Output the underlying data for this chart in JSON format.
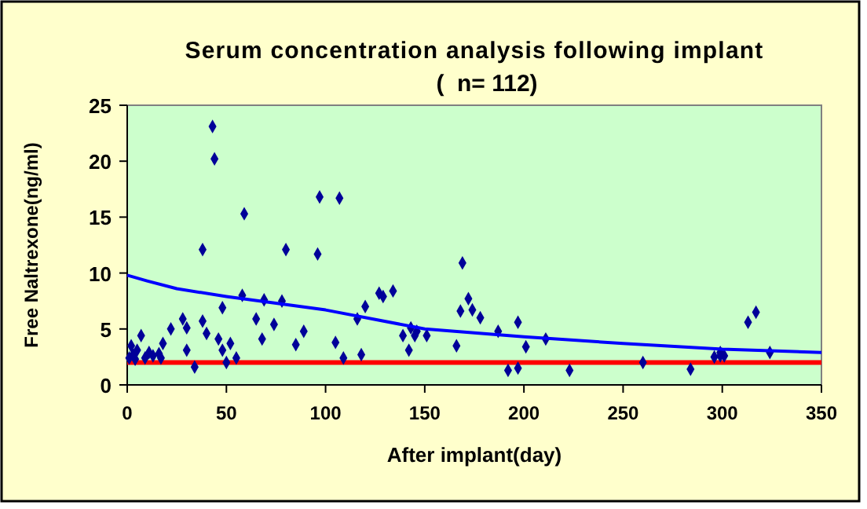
{
  "chart_data": {
    "type": "scatter",
    "title": "Serum concentration analysis following implant",
    "subtitle": "(  n= 112)",
    "xlabel": "After implant(day)",
    "ylabel": "Free Naltrexone(ng/ml)",
    "xlim": [
      0,
      350
    ],
    "xticks": [
      0,
      50,
      100,
      150,
      200,
      250,
      300,
      350
    ],
    "ylim": [
      0,
      25
    ],
    "yticks": [
      0,
      5,
      10,
      15,
      20,
      25
    ],
    "grid": false,
    "marker": "diamond",
    "series": [
      {
        "color": "#000099",
        "x": [
          1,
          2,
          3,
          4,
          5,
          7,
          9,
          11,
          13,
          16,
          17,
          18,
          22,
          28,
          30,
          30,
          34,
          38,
          38,
          40,
          43,
          44,
          46,
          48,
          48,
          50,
          52,
          55,
          58,
          59,
          65,
          68,
          69,
          74,
          78,
          80,
          85,
          89,
          96,
          97,
          105,
          107,
          109,
          116,
          118,
          120,
          127,
          129,
          134,
          139,
          142,
          143,
          145,
          146,
          151,
          166,
          168,
          169,
          172,
          174,
          178,
          187,
          192,
          197,
          197,
          201,
          211,
          223,
          260,
          284,
          296,
          299,
          299,
          301,
          313,
          317,
          324
        ],
        "values": [
          2.4,
          3.5,
          2.7,
          2.3,
          3.1,
          4.4,
          2.4,
          2.9,
          2.6,
          2.8,
          2.4,
          3.7,
          5,
          5.9,
          5.1,
          3.1,
          1.6,
          5.7,
          12.1,
          4.6,
          23.1,
          20.2,
          4.1,
          6.9,
          3.1,
          2,
          3.7,
          2.4,
          8,
          15.3,
          5.9,
          4.1,
          7.6,
          5.4,
          7.5,
          12.1,
          3.6,
          4.8,
          11.7,
          16.8,
          3.8,
          16.7,
          2.4,
          5.9,
          2.7,
          7,
          8.2,
          7.9,
          8.4,
          4.4,
          3.1,
          5.1,
          4.4,
          4.8,
          4.4,
          3.5,
          6.6,
          10.9,
          7.7,
          6.7,
          6,
          4.8,
          1.3,
          1.5,
          5.6,
          3.4,
          4.1,
          1.3,
          2,
          1.4,
          2.5,
          2.6,
          2.9,
          2.6,
          5.6,
          6.5,
          2.9
        ]
      },
      {
        "type": "line",
        "color": "#0000ff",
        "marker": "none",
        "line_style": "solid",
        "x": [
          0,
          10,
          25,
          50,
          75,
          100,
          150,
          200,
          250,
          300,
          350
        ],
        "values": [
          9.8,
          9.3,
          8.6,
          7.9,
          7.3,
          6.7,
          5,
          4.3,
          3.7,
          3.2,
          2.9
        ]
      }
    ],
    "ref_lines": [
      {
        "axis": "y",
        "value": 2,
        "label": null,
        "color": "#ff0000",
        "line_style": "solid"
      }
    ]
  }
}
